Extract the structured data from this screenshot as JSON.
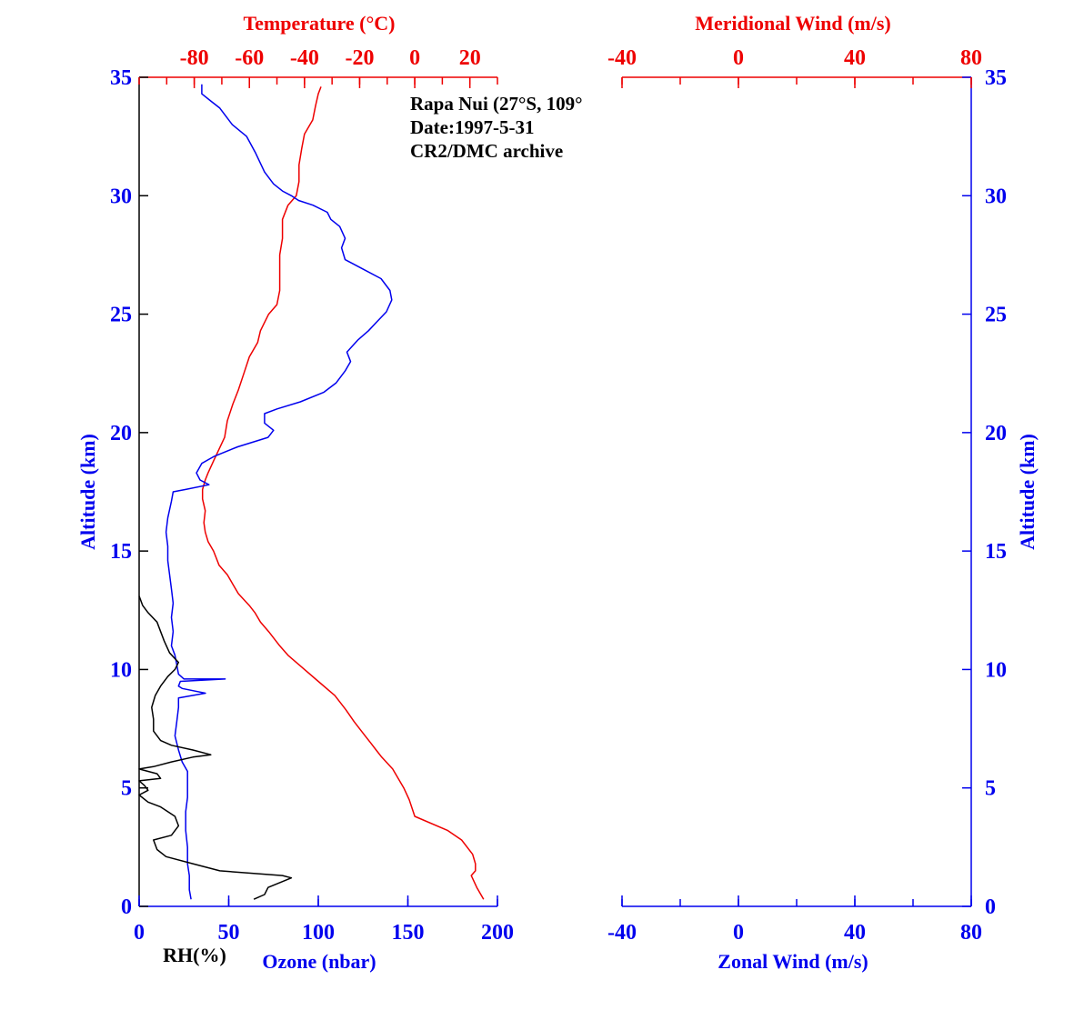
{
  "chart_data": [
    {
      "type": "line",
      "annotation": [
        "Rapa Nui (27°S, 109°",
        "Date:1997-5-31",
        "CR2/DMC archive"
      ],
      "y_axis": {
        "label": "Altitude (km)",
        "range": [
          0,
          35
        ],
        "ticks": [
          "0",
          "5",
          "10",
          "15",
          "20",
          "25",
          "30",
          "35"
        ]
      },
      "top_axis": {
        "label": "Temperature (°C)",
        "range": [
          -100,
          30
        ],
        "ticks": [
          "-80",
          "-60",
          "-40",
          "-20",
          "0",
          "20"
        ],
        "tick_values": [
          -80,
          -60,
          -40,
          -20,
          0,
          20
        ],
        "color": "#ee0000"
      },
      "bottom_axis": {
        "label": "Ozone (nbar)",
        "range": [
          0,
          200
        ],
        "ticks": [
          "0",
          "50",
          "100",
          "150",
          "200"
        ],
        "tick_values": [
          0,
          50,
          100,
          150,
          200
        ],
        "color": "#0000ee"
      },
      "rh_label": "RH(%)",
      "series": [
        {
          "name": "Temperature",
          "axis": "top",
          "color": "#ee0000",
          "points": [
            [
              25.0,
              0.3
            ],
            [
              22.5,
              0.8
            ],
            [
              20.5,
              1.3
            ],
            [
              22,
              1.5
            ],
            [
              22,
              1.8
            ],
            [
              21,
              2.2
            ],
            [
              17,
              2.8
            ],
            [
              12,
              3.2
            ],
            [
              0,
              3.8
            ],
            [
              -2,
              4.5
            ],
            [
              -4,
              5
            ],
            [
              -8,
              5.8
            ],
            [
              -12,
              6.3
            ],
            [
              -14,
              6.6
            ],
            [
              -16,
              6.9
            ],
            [
              -18,
              7.2
            ],
            [
              -22,
              7.8
            ],
            [
              -25,
              8.3
            ],
            [
              -29,
              8.9
            ],
            [
              -35,
              9.5
            ],
            [
              -41,
              10.1
            ],
            [
              -46,
              10.6
            ],
            [
              -49,
              11.0
            ],
            [
              -53,
              11.6
            ],
            [
              -56,
              12.0
            ],
            [
              -58,
              12.4
            ],
            [
              -60,
              12.7
            ],
            [
              -64,
              13.2
            ],
            [
              -66,
              13.6
            ],
            [
              -68,
              14.0
            ],
            [
              -71,
              14.4
            ],
            [
              -72,
              14.7
            ],
            [
              -73,
              15.0
            ],
            [
              -75,
              15.4
            ],
            [
              -76,
              15.8
            ],
            [
              -76.5,
              16.2
            ],
            [
              -76,
              16.7
            ],
            [
              -77,
              17.2
            ],
            [
              -77,
              17.6
            ],
            [
              -76,
              18.0
            ],
            [
              -75,
              18.3
            ],
            [
              -73,
              18.8
            ],
            [
              -71,
              19.3
            ],
            [
              -69,
              19.8
            ],
            [
              -68,
              20.5
            ],
            [
              -66,
              21.2
            ],
            [
              -64,
              21.8
            ],
            [
              -62,
              22.5
            ],
            [
              -60,
              23.2
            ],
            [
              -57,
              23.8
            ],
            [
              -56,
              24.3
            ],
            [
              -53,
              25.0
            ],
            [
              -50,
              25.4
            ],
            [
              -49,
              26.0
            ],
            [
              -49,
              26.7
            ],
            [
              -49,
              27.5
            ],
            [
              -48,
              28.2
            ],
            [
              -48,
              29.0
            ],
            [
              -46,
              29.6
            ],
            [
              -43,
              30.0
            ],
            [
              -42,
              30.6
            ],
            [
              -42,
              31.3
            ],
            [
              -41,
              32.0
            ],
            [
              -40,
              32.6
            ],
            [
              -37,
              33.2
            ],
            [
              -36,
              33.8
            ],
            [
              -35,
              34.3
            ],
            [
              -34,
              34.6
            ]
          ]
        },
        {
          "name": "Ozone",
          "axis": "bottom",
          "color": "#0000ee",
          "points": [
            [
              29,
              0.3
            ],
            [
              28,
              0.7
            ],
            [
              28,
              1.3
            ],
            [
              27,
              1.8
            ],
            [
              27,
              2.5
            ],
            [
              26,
              3.2
            ],
            [
              26,
              4.0
            ],
            [
              27,
              4.6
            ],
            [
              27,
              5.2
            ],
            [
              27,
              5.7
            ],
            [
              24,
              6.1
            ],
            [
              22,
              6.6
            ],
            [
              20,
              7.2
            ],
            [
              21,
              7.8
            ],
            [
              22,
              8.4
            ],
            [
              22,
              8.8
            ],
            [
              37,
              9.0
            ],
            [
              24,
              9.2
            ],
            [
              22,
              9.3
            ],
            [
              23,
              9.5
            ],
            [
              48,
              9.6
            ],
            [
              25,
              9.6
            ],
            [
              22,
              9.8
            ],
            [
              21,
              10.2
            ],
            [
              20,
              10.6
            ],
            [
              18,
              11.0
            ],
            [
              19,
              11.6
            ],
            [
              18,
              12.2
            ],
            [
              19,
              12.8
            ],
            [
              18,
              13.4
            ],
            [
              17,
              14.0
            ],
            [
              16,
              14.6
            ],
            [
              16,
              15.2
            ],
            [
              15,
              15.8
            ],
            [
              16,
              16.4
            ],
            [
              18,
              17.1
            ],
            [
              19,
              17.5
            ],
            [
              26,
              17.6
            ],
            [
              39,
              17.8
            ],
            [
              34,
              18.0
            ],
            [
              32,
              18.3
            ],
            [
              35,
              18.7
            ],
            [
              42,
              19.0
            ],
            [
              55,
              19.4
            ],
            [
              72,
              19.8
            ],
            [
              75,
              20.1
            ],
            [
              70,
              20.4
            ],
            [
              70,
              20.8
            ],
            [
              77,
              21.0
            ],
            [
              90,
              21.3
            ],
            [
              103,
              21.7
            ],
            [
              110,
              22.1
            ],
            [
              115,
              22.6
            ],
            [
              118,
              23.0
            ],
            [
              116,
              23.4
            ],
            [
              122,
              23.9
            ],
            [
              128,
              24.3
            ],
            [
              133,
              24.7
            ],
            [
              138,
              25.1
            ],
            [
              141,
              25.6
            ],
            [
              140,
              26.0
            ],
            [
              135,
              26.5
            ],
            [
              125,
              26.9
            ],
            [
              115,
              27.3
            ],
            [
              113,
              27.8
            ],
            [
              115,
              28.2
            ],
            [
              112,
              28.7
            ],
            [
              107,
              29.0
            ],
            [
              105,
              29.3
            ],
            [
              97,
              29.6
            ],
            [
              89,
              29.8
            ],
            [
              85,
              30.0
            ],
            [
              80,
              30.2
            ],
            [
              75,
              30.5
            ],
            [
              70,
              31.0
            ],
            [
              65,
              31.8
            ],
            [
              60,
              32.5
            ],
            [
              52,
              33.0
            ],
            [
              45,
              33.7
            ],
            [
              40,
              34.0
            ],
            [
              35,
              34.3
            ],
            [
              35,
              34.7
            ]
          ]
        },
        {
          "name": "RH",
          "axis": "bottom",
          "color": "#000000",
          "points": [
            [
              64,
              0.3
            ],
            [
              70,
              0.5
            ],
            [
              72,
              0.8
            ],
            [
              85,
              1.2
            ],
            [
              80,
              1.3
            ],
            [
              45,
              1.5
            ],
            [
              30,
              1.8
            ],
            [
              15,
              2.1
            ],
            [
              10,
              2.4
            ],
            [
              8,
              2.8
            ],
            [
              18,
              3.0
            ],
            [
              22,
              3.4
            ],
            [
              20,
              3.8
            ],
            [
              12,
              4.2
            ],
            [
              5,
              4.4
            ],
            [
              0,
              4.7
            ],
            [
              5,
              4.9
            ],
            [
              3,
              5.1
            ],
            [
              0,
              5.3
            ],
            [
              12,
              5.4
            ],
            [
              10,
              5.6
            ],
            [
              0,
              5.8
            ],
            [
              8,
              5.9
            ],
            [
              18,
              6.1
            ],
            [
              30,
              6.3
            ],
            [
              40,
              6.4
            ],
            [
              30,
              6.6
            ],
            [
              18,
              6.8
            ],
            [
              12,
              7.0
            ],
            [
              8,
              7.4
            ],
            [
              8,
              7.9
            ],
            [
              7,
              8.4
            ],
            [
              9,
              8.9
            ],
            [
              12,
              9.3
            ],
            [
              16,
              9.7
            ],
            [
              20,
              10.0
            ],
            [
              22,
              10.3
            ],
            [
              17,
              10.7
            ],
            [
              14,
              11.2
            ],
            [
              12,
              11.6
            ],
            [
              10,
              12.0
            ],
            [
              5,
              12.4
            ],
            [
              2,
              12.7
            ],
            [
              0,
              13.1
            ]
          ]
        }
      ]
    },
    {
      "type": "line",
      "y_axis": {
        "label": "Altitude (km)",
        "range": [
          0,
          35
        ],
        "ticks": [
          "0",
          "5",
          "10",
          "15",
          "20",
          "25",
          "30",
          "35"
        ]
      },
      "top_axis": {
        "label": "Meridional Wind (m/s)",
        "range": [
          -40,
          80
        ],
        "ticks": [
          "-40",
          "0",
          "40",
          "80"
        ],
        "tick_values": [
          -40,
          0,
          40,
          80
        ],
        "color": "#ee0000"
      },
      "bottom_axis": {
        "label": "Zonal Wind (m/s)",
        "range": [
          -40,
          80
        ],
        "ticks": [
          "-40",
          "0",
          "40",
          "80"
        ],
        "tick_values": [
          -40,
          0,
          40,
          80
        ],
        "color": "#0000ee"
      },
      "series": []
    }
  ]
}
